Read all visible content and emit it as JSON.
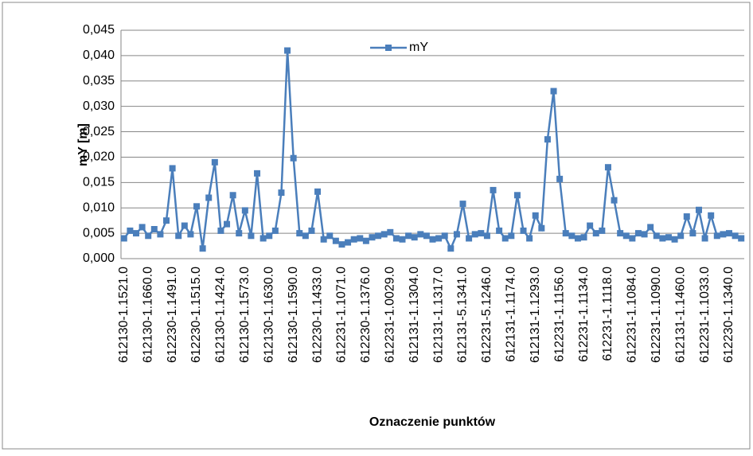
{
  "chart_data": {
    "type": "line",
    "x_label": "Oznaczenie punktów",
    "y_label": "mY [m]",
    "categories": [
      "612130-1.1521.0",
      null,
      null,
      null,
      "612130-1.1660.0",
      null,
      null,
      null,
      "612230-1.1491.0",
      null,
      null,
      null,
      "612230-1.1515.0",
      null,
      null,
      null,
      "612130-1.1424.0",
      null,
      null,
      null,
      "612130-1.1573.0",
      null,
      null,
      null,
      "612130-1.1630.0",
      null,
      null,
      null,
      "612130-1.1590.0",
      null,
      null,
      null,
      "612230-1.1433.0",
      null,
      null,
      null,
      "612231-1.1071.0",
      null,
      null,
      null,
      "612230-1.1376.0",
      null,
      null,
      null,
      "612231-1.0029.0",
      null,
      null,
      null,
      "612131-1.1304.0",
      null,
      null,
      null,
      "612131-1.1317.0",
      null,
      null,
      null,
      "612131-5.1341.0",
      null,
      null,
      null,
      "612231-5.1246.0",
      null,
      null,
      null,
      "612131-1.1174.0",
      null,
      null,
      null,
      "612131-1.1293.0",
      null,
      null,
      null,
      "612231-1.1156.0",
      null,
      null,
      null,
      "612231-1.1134.0",
      null,
      null,
      null,
      "612231-1.1118.0",
      null,
      null,
      null,
      "612231-1.1084.0",
      null,
      null,
      null,
      "612231-1.1090.0",
      null,
      null,
      null,
      "612131-1.1460.0",
      null,
      null,
      null,
      "612231-1.1033.0",
      null,
      null,
      null,
      "612230-1.1340.0",
      null,
      null
    ],
    "series": [
      {
        "name": "mY",
        "color": "#4a7ebb",
        "values": [
          0.004,
          0.0055,
          0.005,
          0.0062,
          0.0045,
          0.0058,
          0.0048,
          0.0075,
          0.0178,
          0.0045,
          0.0065,
          0.0048,
          0.0103,
          0.002,
          0.012,
          0.019,
          0.0055,
          0.0068,
          0.0125,
          0.005,
          0.0095,
          0.0045,
          0.0168,
          0.004,
          0.0045,
          0.0055,
          0.013,
          0.041,
          0.0198,
          0.005,
          0.0045,
          0.0055,
          0.0132,
          0.0038,
          0.0045,
          0.0035,
          0.0028,
          0.0032,
          0.0038,
          0.004,
          0.0035,
          0.0042,
          0.0045,
          0.0048,
          0.0052,
          0.004,
          0.0038,
          0.0045,
          0.0042,
          0.0048,
          0.0045,
          0.0038,
          0.004,
          0.0045,
          0.002,
          0.0048,
          0.0108,
          0.004,
          0.0048,
          0.005,
          0.0045,
          0.0135,
          0.0055,
          0.004,
          0.0045,
          0.0125,
          0.0055,
          0.004,
          0.0085,
          0.006,
          0.0235,
          0.033,
          0.0157,
          0.005,
          0.0045,
          0.004,
          0.0042,
          0.0065,
          0.005,
          0.0055,
          0.018,
          0.0115,
          0.005,
          0.0045,
          0.004,
          0.005,
          0.0048,
          0.0062,
          0.0045,
          0.004,
          0.0042,
          0.0038,
          0.0045,
          0.0083,
          0.005,
          0.0096,
          0.004,
          0.0085,
          0.0045,
          0.0048,
          0.005,
          0.0045,
          0.004
        ]
      }
    ],
    "ylim": [
      0,
      0.045
    ],
    "yticks": [
      {
        "value": 0,
        "label": "0,000"
      },
      {
        "value": 0.005,
        "label": "0,005"
      },
      {
        "value": 0.01,
        "label": "0,010"
      },
      {
        "value": 0.015,
        "label": "0,015"
      },
      {
        "value": 0.02,
        "label": "0,020"
      },
      {
        "value": 0.025,
        "label": "0,025"
      },
      {
        "value": 0.03,
        "label": "0,030"
      },
      {
        "value": 0.035,
        "label": "0,035"
      },
      {
        "value": 0.04,
        "label": "0,040"
      },
      {
        "value": 0.045,
        "label": "0,045"
      }
    ],
    "grid": true,
    "legend": "top"
  }
}
